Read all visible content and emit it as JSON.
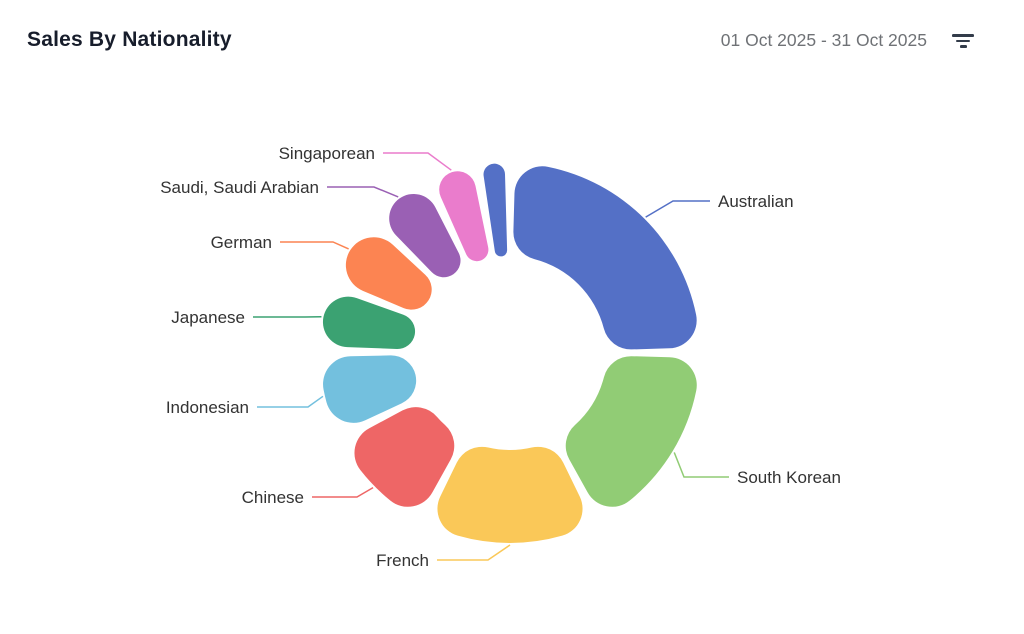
{
  "header": {
    "title": "Sales By Nationality",
    "date_range": "01 Oct 2025 - 31 Oct 2025",
    "filter_icon": "filter-lines-icon"
  },
  "colors": {
    "background": "#ffffff",
    "title_text": "#171d2b",
    "date_text": "#6f7276",
    "label_text": "#333333",
    "filter_icon": "#333c4a"
  },
  "chart_data": {
    "type": "pie",
    "title": "Sales By Nationality",
    "donut": true,
    "rounded_segments": true,
    "start_angle_deg_from_top": 0,
    "clockwise": true,
    "legend_position": "callout-labels",
    "value_unit": "percent share (estimated from arc angles; no numeric labels shown)",
    "segments": [
      {
        "label": "Australian",
        "value": 25.0,
        "color": "#5470c6"
      },
      {
        "label": "South Korean",
        "value": 17.4,
        "color": "#91cc75"
      },
      {
        "label": "French",
        "value": 15.3,
        "color": "#fac858"
      },
      {
        "label": "Chinese",
        "value": 10.0,
        "color": "#ee6666"
      },
      {
        "label": "Indonesian",
        "value": 7.5,
        "color": "#73c0de"
      },
      {
        "label": "Japanese",
        "value": 5.8,
        "color": "#3ba272"
      },
      {
        "label": "German",
        "value": 6.4,
        "color": "#fc8452"
      },
      {
        "label": "Saudi, Saudi Arabian",
        "value": 5.6,
        "color": "#9a60b4"
      },
      {
        "label": "Singaporean",
        "value": 4.3,
        "color": "#ea7ccc"
      },
      {
        "label": "",
        "value": 2.8,
        "color": "#5470c6"
      }
    ]
  }
}
